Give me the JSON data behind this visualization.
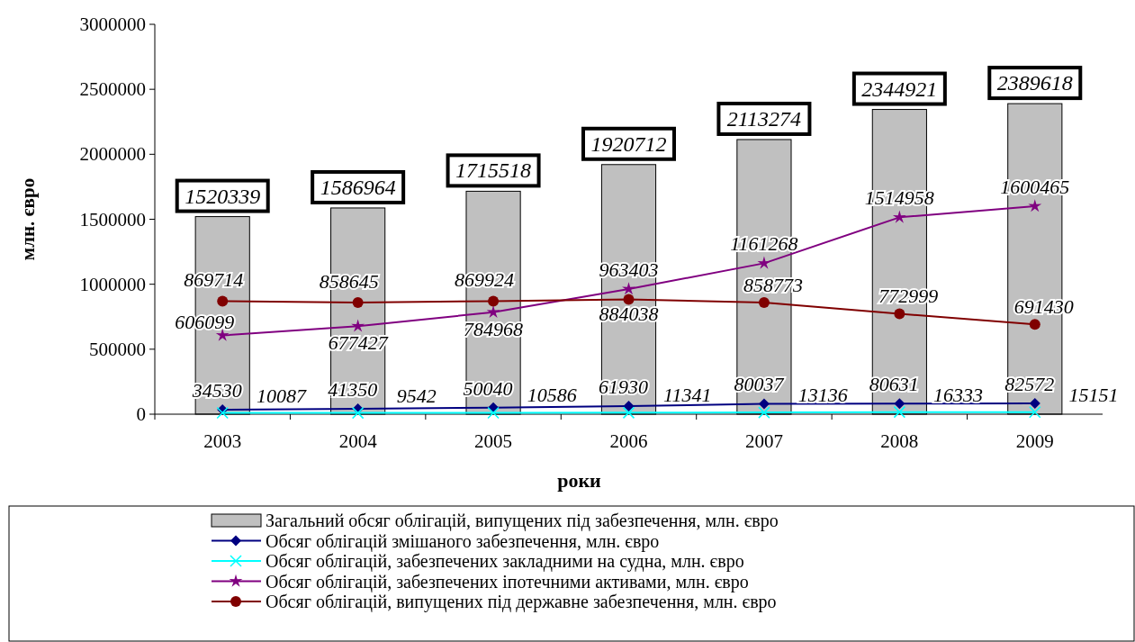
{
  "chart_data": {
    "type": "bar",
    "xlabel": "роки",
    "ylabel": "млн. євро",
    "categories": [
      "2003",
      "2004",
      "2005",
      "2006",
      "2007",
      "2008",
      "2009"
    ],
    "ylim": [
      0,
      3000000
    ],
    "yticks": [
      0,
      500000,
      1000000,
      1500000,
      2000000,
      2500000,
      3000000
    ],
    "grid": false,
    "legend": "bottom",
    "data_labels": true,
    "series": [
      {
        "name": "Загальний обсяг облігацій, випущених під забезпечення, млн. євро",
        "color": "#c0c0c0",
        "values": [
          1520339,
          1586964,
          1715518,
          1920712,
          2113274,
          2344921,
          2389618
        ]
      },
      {
        "name": "Обсяг облігацій змішаного забезпечення, млн. євро",
        "type": "line",
        "marker": "diamond",
        "color": "#000080",
        "values": [
          34530,
          41350,
          50040,
          61930,
          80037,
          80631,
          82572
        ]
      },
      {
        "name": "Обсяг облігацій, забезпечених закладними на судна, млн. євро",
        "type": "line",
        "marker": "cross",
        "color": "#00ffff",
        "values": [
          10087,
          9542,
          10586,
          11341,
          13136,
          16333,
          15151
        ]
      },
      {
        "name": "Обсяг облігацій, забезпечених іпотечними активами, млн. євро",
        "type": "line",
        "marker": "star",
        "color": "#800080",
        "values": [
          606099,
          677427,
          784968,
          963403,
          1161268,
          1514958,
          1600465
        ]
      },
      {
        "name": "Обсяг облігацій, випущених під державне забезпечення, млн. євро",
        "type": "line",
        "marker": "circle",
        "color": "#800000",
        "values": [
          869714,
          858645,
          869924,
          884038,
          858773,
          772999,
          691430
        ]
      }
    ]
  }
}
